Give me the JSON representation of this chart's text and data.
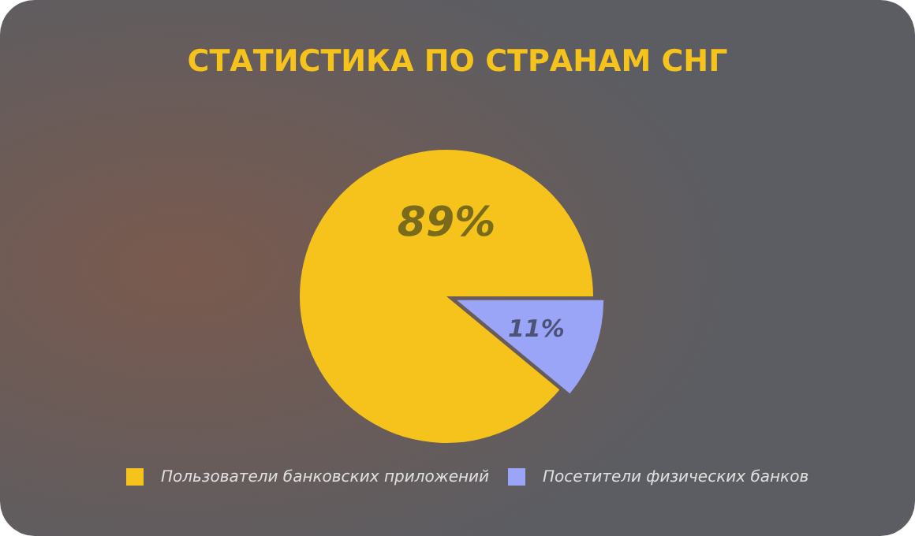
{
  "chart_data": {
    "type": "pie",
    "title": "СТАТИСТИКА ПО СТРАНАМ СНГ",
    "categories": [
      "Пользователи банковских приложений",
      "Посетители физических банков"
    ],
    "values": [
      89,
      11
    ],
    "colors": [
      "#f6c21c",
      "#9ba5f7"
    ],
    "value_labels": [
      "89%",
      "11%"
    ],
    "legend": "bottom"
  }
}
